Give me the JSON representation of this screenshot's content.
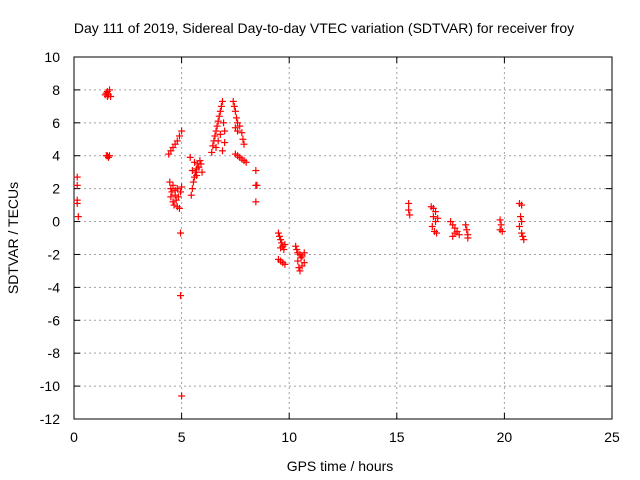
{
  "chart_data": {
    "type": "scatter",
    "title": "Day 111 of 2019, Sidereal Day-to-day VTEC variation (SDTVAR) for receiver froy",
    "xlabel": "GPS time / hours",
    "ylabel": "SDTVAR / TECUs",
    "xlim": [
      0,
      25
    ],
    "ylim": [
      -12,
      10
    ],
    "xticks": [
      0,
      5,
      10,
      15,
      20,
      25
    ],
    "yticks": [
      10,
      8,
      6,
      4,
      2,
      0,
      -2,
      -4,
      -6,
      -8,
      -10,
      -12
    ],
    "grid": true,
    "marker": "+",
    "color": "#ff0000",
    "series": [
      {
        "name": "SDTVAR",
        "points": [
          [
            0.15,
            2.7
          ],
          [
            0.15,
            2.2
          ],
          [
            0.15,
            1.3
          ],
          [
            0.15,
            1.1
          ],
          [
            0.2,
            0.3
          ],
          [
            1.45,
            7.7
          ],
          [
            1.5,
            7.8
          ],
          [
            1.55,
            7.9
          ],
          [
            1.6,
            7.7
          ],
          [
            1.65,
            8.0
          ],
          [
            1.7,
            7.6
          ],
          [
            1.55,
            7.6
          ],
          [
            1.5,
            4.0
          ],
          [
            1.55,
            4.0
          ],
          [
            1.6,
            3.9
          ],
          [
            1.65,
            4.0
          ],
          [
            4.4,
            4.1
          ],
          [
            4.5,
            4.3
          ],
          [
            4.6,
            4.5
          ],
          [
            4.7,
            4.7
          ],
          [
            4.8,
            4.9
          ],
          [
            4.9,
            5.2
          ],
          [
            5.0,
            5.5
          ],
          [
            4.45,
            2.4
          ],
          [
            4.5,
            2.0
          ],
          [
            4.55,
            1.8
          ],
          [
            4.5,
            1.5
          ],
          [
            4.6,
            1.2
          ],
          [
            4.65,
            1.0
          ],
          [
            4.7,
            1.6
          ],
          [
            4.75,
            1.3
          ],
          [
            4.8,
            0.9
          ],
          [
            4.85,
            1.5
          ],
          [
            4.9,
            0.8
          ],
          [
            4.95,
            1.8
          ],
          [
            5.0,
            2.1
          ],
          [
            4.6,
            2.2
          ],
          [
            4.7,
            1.9
          ],
          [
            4.8,
            2.0
          ],
          [
            4.95,
            -0.7
          ],
          [
            4.95,
            -4.5
          ],
          [
            5.0,
            -10.6
          ],
          [
            5.4,
            3.9
          ],
          [
            5.45,
            1.6
          ],
          [
            5.5,
            2.0
          ],
          [
            5.55,
            2.4
          ],
          [
            5.6,
            2.7
          ],
          [
            5.65,
            3.0
          ],
          [
            5.7,
            3.2
          ],
          [
            5.75,
            3.5
          ],
          [
            5.8,
            3.3
          ],
          [
            5.85,
            3.7
          ],
          [
            5.9,
            3.5
          ],
          [
            5.95,
            3.0
          ],
          [
            5.5,
            3.1
          ],
          [
            5.6,
            3.6
          ],
          [
            5.7,
            2.8
          ],
          [
            6.4,
            4.2
          ],
          [
            6.45,
            4.6
          ],
          [
            6.5,
            4.9
          ],
          [
            6.55,
            5.2
          ],
          [
            6.6,
            5.5
          ],
          [
            6.65,
            5.8
          ],
          [
            6.7,
            6.1
          ],
          [
            6.75,
            6.4
          ],
          [
            6.8,
            6.7
          ],
          [
            6.85,
            7.0
          ],
          [
            6.9,
            7.3
          ],
          [
            6.95,
            6.0
          ],
          [
            7.0,
            5.5
          ],
          [
            6.6,
            4.5
          ],
          [
            6.7,
            4.9
          ],
          [
            6.8,
            5.3
          ],
          [
            6.9,
            4.3
          ],
          [
            7.0,
            4.8
          ],
          [
            7.4,
            7.3
          ],
          [
            7.45,
            7.0
          ],
          [
            7.5,
            6.7
          ],
          [
            7.55,
            6.3
          ],
          [
            7.6,
            6.0
          ],
          [
            7.5,
            5.7
          ],
          [
            7.6,
            5.5
          ],
          [
            7.7,
            5.8
          ],
          [
            7.8,
            5.4
          ],
          [
            7.85,
            5.0
          ],
          [
            7.9,
            4.7
          ],
          [
            7.5,
            4.1
          ],
          [
            7.6,
            4.0
          ],
          [
            7.7,
            3.9
          ],
          [
            7.8,
            3.8
          ],
          [
            7.9,
            3.7
          ],
          [
            8.0,
            3.6
          ],
          [
            8.45,
            3.1
          ],
          [
            8.45,
            2.2
          ],
          [
            8.5,
            2.2
          ],
          [
            8.45,
            1.2
          ],
          [
            9.5,
            -0.7
          ],
          [
            9.55,
            -0.9
          ],
          [
            9.6,
            -1.1
          ],
          [
            9.65,
            -1.3
          ],
          [
            9.7,
            -1.5
          ],
          [
            9.75,
            -1.7
          ],
          [
            9.8,
            -1.4
          ],
          [
            9.6,
            -1.6
          ],
          [
            9.5,
            -2.3
          ],
          [
            9.6,
            -2.4
          ],
          [
            9.7,
            -2.5
          ],
          [
            9.8,
            -2.6
          ],
          [
            10.3,
            -1.5
          ],
          [
            10.35,
            -1.7
          ],
          [
            10.4,
            -1.9
          ],
          [
            10.5,
            -2.0
          ],
          [
            10.6,
            -2.1
          ],
          [
            10.7,
            -1.9
          ],
          [
            10.4,
            -2.4
          ],
          [
            10.45,
            -2.8
          ],
          [
            10.5,
            -3.0
          ],
          [
            10.6,
            -2.7
          ],
          [
            10.7,
            -2.5
          ],
          [
            10.55,
            -2.2
          ],
          [
            15.55,
            1.1
          ],
          [
            15.55,
            0.7
          ],
          [
            15.6,
            0.4
          ],
          [
            16.6,
            0.9
          ],
          [
            16.7,
            0.8
          ],
          [
            16.8,
            0.6
          ],
          [
            16.7,
            0.3
          ],
          [
            16.8,
            0.0
          ],
          [
            16.9,
            0.2
          ],
          [
            16.65,
            -0.3
          ],
          [
            16.75,
            -0.6
          ],
          [
            16.85,
            -0.7
          ],
          [
            17.5,
            0.0
          ],
          [
            17.6,
            -0.2
          ],
          [
            17.7,
            -0.4
          ],
          [
            17.8,
            -0.6
          ],
          [
            17.9,
            -0.8
          ],
          [
            17.6,
            -0.9
          ],
          [
            17.7,
            -0.7
          ],
          [
            18.2,
            -0.2
          ],
          [
            18.25,
            -0.5
          ],
          [
            18.3,
            -0.8
          ],
          [
            18.3,
            -1.0
          ],
          [
            19.8,
            0.1
          ],
          [
            19.85,
            -0.2
          ],
          [
            19.8,
            -0.5
          ],
          [
            19.9,
            -0.6
          ],
          [
            20.7,
            1.1
          ],
          [
            20.8,
            1.0
          ],
          [
            20.75,
            0.3
          ],
          [
            20.8,
            0.0
          ],
          [
            20.7,
            -0.3
          ],
          [
            20.8,
            -0.7
          ],
          [
            20.85,
            -0.9
          ],
          [
            20.9,
            -1.1
          ]
        ]
      }
    ]
  }
}
